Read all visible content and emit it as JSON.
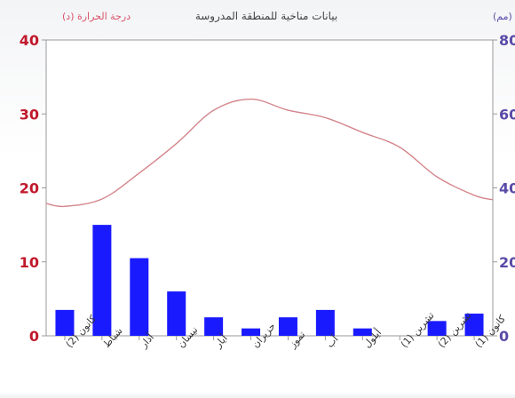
{
  "chart_data": {
    "type": "bar+line",
    "title": "بيانات مناخية للمنطقة المدروسة",
    "left_axis_label": "درجة الحرارة (د)",
    "right_axis_label": "كمية الهطل (مم)",
    "categories": [
      "كانون الثاني",
      "شباط",
      "آذار",
      "نيسان",
      "أيار",
      "حزيران",
      "تموز",
      "آب",
      "أيلول",
      "تشرين الأول",
      "تشرين الثاني",
      "كانون الأول"
    ],
    "category_labels": [
      "كانون (2)",
      "شباط",
      "آذار",
      "نيسان",
      "أيار",
      "حزيران",
      "تموز",
      "آب",
      "أيلول",
      "تشرين (1)",
      "تشرين (2)",
      "كانون (1)"
    ],
    "series": [
      {
        "name": "كمية الهطل (مم)",
        "type": "bar",
        "axis": "right",
        "values": [
          7,
          30,
          21,
          12,
          5,
          2,
          5,
          7,
          2,
          0,
          4,
          6
        ]
      },
      {
        "name": "درجة الحرارة (د)",
        "type": "line",
        "axis": "left",
        "values": [
          17.5,
          18.5,
          22,
          26,
          30.5,
          32,
          30.5,
          29.5,
          27.5,
          25.5,
          21.5,
          19
        ]
      }
    ],
    "left_axis": {
      "min": 0,
      "max": 40,
      "ticks": [
        "0",
        "10",
        "20",
        "30",
        "40"
      ]
    },
    "right_axis": {
      "min": 0,
      "max": 80,
      "ticks": [
        "0",
        "20",
        "40",
        "60",
        "80"
      ]
    },
    "grid": false,
    "colors": {
      "bars": "#1a1aff",
      "line": "#d4868c",
      "left_axis_text": "#c0192c",
      "right_axis_text": "#5a4aa8",
      "frame": "#9a9a9a"
    }
  }
}
